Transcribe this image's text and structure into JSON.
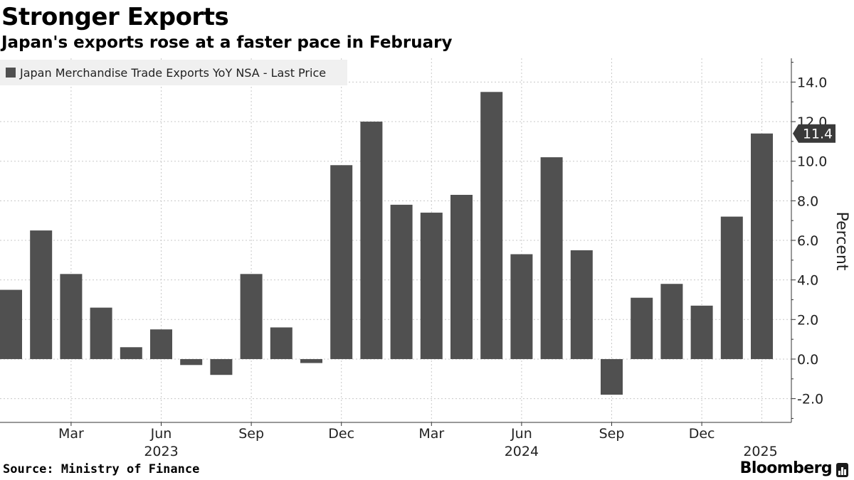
{
  "title": "Stronger Exports",
  "subtitle": "Japan's exports rose at a faster pace in February",
  "source": "Source: Ministry of Finance",
  "brand": "Bloomberg",
  "colors": {
    "bar": "#505050",
    "grid": "#c8c8c8",
    "axis": "#333333",
    "legend_bg": "#f0f0f0"
  },
  "chart_data": {
    "type": "bar",
    "series": [
      {
        "name": "Japan Merchandise Trade Exports YoY NSA - Last Price",
        "values": [
          3.5,
          6.5,
          4.3,
          2.6,
          0.6,
          1.5,
          -0.3,
          -0.8,
          4.3,
          1.6,
          -0.2,
          9.8,
          12.0,
          7.8,
          7.4,
          8.3,
          13.5,
          5.3,
          10.2,
          5.5,
          -1.8,
          3.1,
          3.8,
          2.7,
          7.2,
          11.4
        ]
      }
    ],
    "categories": [
      "2023-01",
      "2023-02",
      "2023-03",
      "2023-04",
      "2023-05",
      "2023-06",
      "2023-07",
      "2023-08",
      "2023-09",
      "2023-10",
      "2023-11",
      "2023-12",
      "2024-01",
      "2024-02",
      "2024-03",
      "2024-04",
      "2024-05",
      "2024-06",
      "2024-07",
      "2024-08",
      "2024-09",
      "2024-10",
      "2024-11",
      "2024-12",
      "2025-01",
      "2025-02"
    ],
    "x_tick_labels": [
      {
        "index": 2,
        "label": "Mar"
      },
      {
        "index": 5,
        "label": "Jun"
      },
      {
        "index": 8,
        "label": "Sep"
      },
      {
        "index": 11,
        "label": "Dec"
      },
      {
        "index": 14,
        "label": "Mar"
      },
      {
        "index": 17,
        "label": "Jun"
      },
      {
        "index": 20,
        "label": "Sep"
      },
      {
        "index": 23,
        "label": "Dec"
      }
    ],
    "year_labels": [
      {
        "index": 5,
        "label": "2023"
      },
      {
        "index": 17,
        "label": "2024"
      },
      {
        "index": 25,
        "label": "2025"
      }
    ],
    "y_ticks": [
      "-2.0",
      "0.0",
      "2.0",
      "4.0",
      "6.0",
      "8.0",
      "10.0",
      "12.0",
      "14.0"
    ],
    "ylim": [
      -3.2,
      15.2
    ],
    "ylabel": "Percent",
    "y_axis_position": "right",
    "last_value_label": "11.4",
    "grid": true,
    "legend_position": "top-left"
  }
}
